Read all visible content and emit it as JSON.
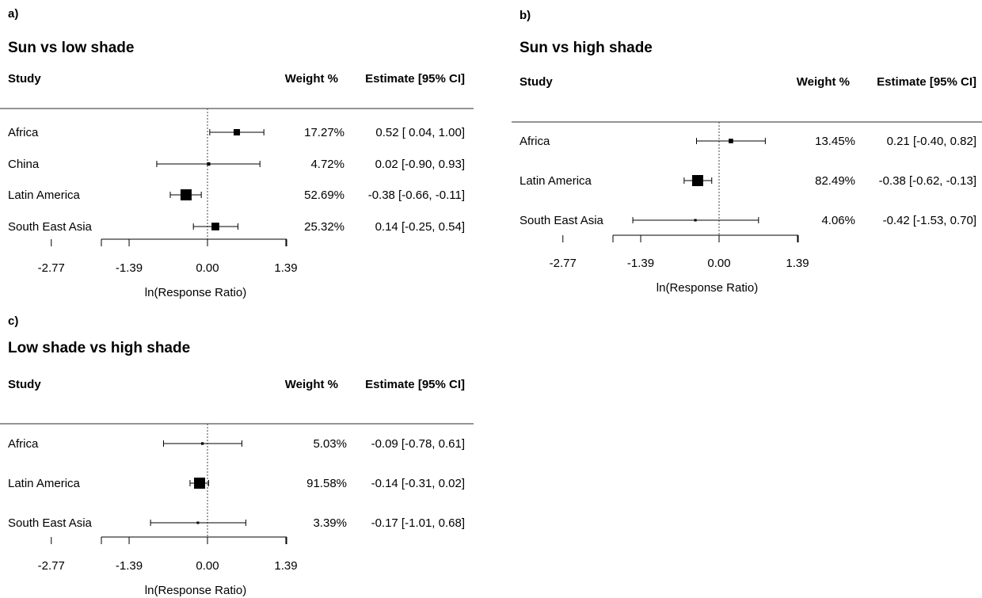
{
  "chart_data": [
    {
      "type": "forest",
      "panel_label": "a)",
      "title": "Sun vs low shade",
      "column_headers": {
        "study": "Study",
        "weight": "Weight  %",
        "estimate": "Estimate [95% CI]"
      },
      "xlabel": "ln(Response Ratio)",
      "xlim": [
        -2.77,
        2.08
      ],
      "xticks": [
        -2.77,
        -1.39,
        0.0,
        1.39
      ],
      "xtick_labels": [
        "-2.77",
        "-1.39",
        "0.00",
        "1.39"
      ],
      "reference_line": 0,
      "studies": [
        {
          "name": "Africa",
          "weight": 17.27,
          "weight_label": "17.27%",
          "estimate": 0.52,
          "ci": [
            0.04,
            1.0
          ],
          "estimate_label": "0.52 [ 0.04,  1.00]"
        },
        {
          "name": "China",
          "weight": 4.72,
          "weight_label": "4.72%",
          "estimate": 0.02,
          "ci": [
            -0.9,
            0.93
          ],
          "estimate_label": "0.02 [-0.90,  0.93]"
        },
        {
          "name": "Latin America",
          "weight": 52.69,
          "weight_label": "52.69%",
          "estimate": -0.38,
          "ci": [
            -0.66,
            -0.11
          ],
          "estimate_label": "-0.38 [-0.66, -0.11]"
        },
        {
          "name": "South East Asia",
          "weight": 25.32,
          "weight_label": "25.32%",
          "estimate": 0.14,
          "ci": [
            -0.25,
            0.54
          ],
          "estimate_label": "0.14 [-0.25,  0.54]"
        }
      ]
    },
    {
      "type": "forest",
      "panel_label": "b)",
      "title": "Sun vs high shade",
      "column_headers": {
        "study": "Study",
        "weight": "Weight  %",
        "estimate": "Estimate [95% CI]"
      },
      "xlabel": "ln(Response Ratio)",
      "xlim": [
        -2.77,
        2.08
      ],
      "xticks": [
        -2.77,
        -1.39,
        0.0,
        1.39
      ],
      "xtick_labels": [
        "-2.77",
        "-1.39",
        "0.00",
        "1.39"
      ],
      "reference_line": 0,
      "studies": [
        {
          "name": "Africa",
          "weight": 13.45,
          "weight_label": "13.45%",
          "estimate": 0.21,
          "ci": [
            -0.4,
            0.82
          ],
          "estimate_label": "0.21 [-0.40,  0.82]"
        },
        {
          "name": "Latin America",
          "weight": 82.49,
          "weight_label": "82.49%",
          "estimate": -0.38,
          "ci": [
            -0.62,
            -0.13
          ],
          "estimate_label": "-0.38 [-0.62, -0.13]"
        },
        {
          "name": "South East Asia",
          "weight": 4.06,
          "weight_label": "4.06%",
          "estimate": -0.42,
          "ci": [
            -1.53,
            0.7
          ],
          "estimate_label": "-0.42 [-1.53,  0.70]"
        }
      ]
    },
    {
      "type": "forest",
      "panel_label": "c)",
      "title": "Low shade vs high shade",
      "column_headers": {
        "study": "Study",
        "weight": "Weight  %",
        "estimate": "Estimate [95% CI]"
      },
      "xlabel": "ln(Response Ratio)",
      "xlim": [
        -2.77,
        2.08
      ],
      "xticks": [
        -2.77,
        -1.39,
        0.0,
        1.39
      ],
      "xtick_labels": [
        "-2.77",
        "-1.39",
        "0.00",
        "1.39"
      ],
      "reference_line": 0,
      "studies": [
        {
          "name": "Africa",
          "weight": 5.03,
          "weight_label": "5.03%",
          "estimate": -0.09,
          "ci": [
            -0.78,
            0.61
          ],
          "estimate_label": "-0.09 [-0.78, 0.61]"
        },
        {
          "name": "Latin America",
          "weight": 91.58,
          "weight_label": "91.58%",
          "estimate": -0.14,
          "ci": [
            -0.31,
            0.02
          ],
          "estimate_label": "-0.14 [-0.31, 0.02]"
        },
        {
          "name": "South East Asia",
          "weight": 3.39,
          "weight_label": "3.39%",
          "estimate": -0.17,
          "ci": [
            -1.01,
            0.68
          ],
          "estimate_label": "-0.17 [-1.01, 0.68]"
        }
      ]
    }
  ]
}
